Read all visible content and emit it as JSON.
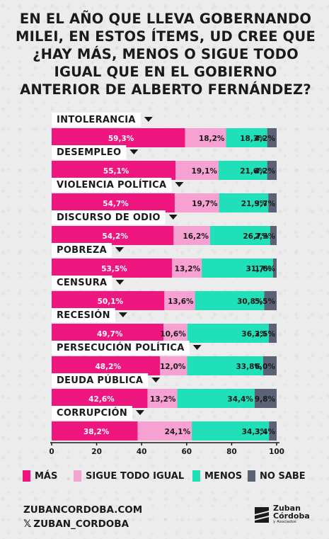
{
  "title": "EN EL AÑO QUE LLEVA GOBERNANDO\nMILEI, EN ESTOS ÍTEMS, UD CREE QUE\n¿HAY MÁS, MENOS O SIGUE TODO\nIGUAL QUE EN EL GOBIERNO\nANTERIOR DE ALBERTO FERNÁNDEZ?",
  "colors": {
    "mas": "#f0167f",
    "sigue": "#f7a0d2",
    "menos": "#1fe0b8",
    "nosabe": "#5b6275",
    "text": "#1a1a1a"
  },
  "chart_data": {
    "type": "bar",
    "stacked": true,
    "orientation": "horizontal",
    "categories": [
      "INTOLERANCIA",
      "DESEMPLEO",
      "VIOLENCIA POLÍTICA",
      "DISCURSO DE ODIO",
      "POBREZA",
      "CENSURA",
      "RECESIÓN",
      "PERSECUCIÓN POLÍTICA",
      "DEUDA PÚBLICA",
      "CORRUPCIÓN"
    ],
    "series": [
      {
        "name": "MÁS",
        "values": [
          59.3,
          55.1,
          54.7,
          54.2,
          53.5,
          50.1,
          49.7,
          48.2,
          42.6,
          38.2
        ],
        "labels": [
          "59,3%",
          "55,1%",
          "54,7%",
          "54,2%",
          "53,5%",
          "50,1%",
          "49,7%",
          "48,2%",
          "42,6%",
          "38,2%"
        ]
      },
      {
        "name": "SIGUE TODO IGUAL",
        "values": [
          18.2,
          19.1,
          19.7,
          16.2,
          13.2,
          13.6,
          10.6,
          12.0,
          13.2,
          24.1
        ],
        "labels": [
          "18,2%",
          "19,1%",
          "19,7%",
          "16,2%",
          "13,2%",
          "13,6%",
          "10,6%",
          "12,0%",
          "13,2%",
          "24,1%"
        ]
      },
      {
        "name": "MENOS",
        "values": [
          18.3,
          21.6,
          21.9,
          26.7,
          31.7,
          30.8,
          36.2,
          33.8,
          34.4,
          34.3
        ],
        "labels": [
          "18,3%",
          "21,6%",
          "21,9%",
          "26,7%",
          "31,7%",
          "30,8%",
          "36,2%",
          "33,8%",
          "34,4%",
          "34,3%"
        ]
      },
      {
        "name": "NO SABE",
        "values": [
          4.2,
          4.2,
          3.7,
          2.9,
          1.6,
          5.5,
          3.5,
          6.0,
          9.8,
          3.4
        ],
        "labels": [
          "4,2%",
          "4,2%",
          "3,7%",
          "2,9%",
          "1,6%",
          "5,5%",
          "3,5%",
          "6,0%",
          "9,8%",
          "3,4%"
        ]
      }
    ],
    "xlim": [
      0,
      100
    ],
    "xticks": [
      0,
      20,
      40,
      60,
      80,
      100
    ],
    "legend_position": "bottom",
    "grid": false
  },
  "footer": {
    "website": "ZUBANCORDOBA.COM",
    "x_glyph": "𝕏",
    "handle": "ZUBAN_CORDOBA",
    "brand_line1": "Zuban",
    "brand_line2": "Córdoba",
    "brand_line3": "y Asociados"
  },
  "icons": {
    "dropdown": "triangle-down-icon",
    "brand": "zuban-cordoba-logo-icon"
  }
}
